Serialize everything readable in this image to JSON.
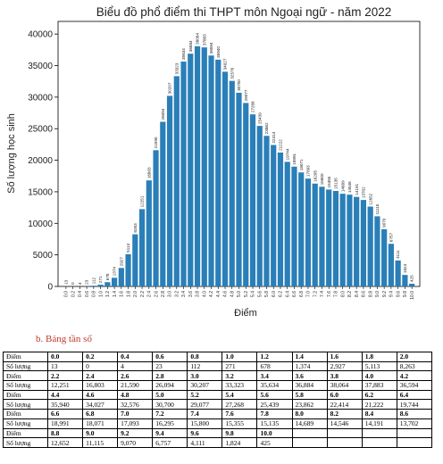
{
  "chart_data": {
    "type": "bar",
    "title": "Biểu đồ phổ điểm thi THPT môn Ngoại ngữ - năm 2022",
    "xlabel": "Điểm",
    "ylabel": "Số lượng học sinh",
    "ylim": [
      0,
      42000
    ],
    "yticks": [
      0,
      5000,
      10000,
      15000,
      20000,
      25000,
      30000,
      35000,
      40000
    ],
    "categories": [
      "0.0",
      "0.2",
      "0.4",
      "0.6",
      "0.8",
      "1.0",
      "1.2",
      "1.4",
      "1.6",
      "1.8",
      "2.0",
      "2.2",
      "2.4",
      "2.6",
      "2.8",
      "3.0",
      "3.2",
      "3.4",
      "3.6",
      "3.8",
      "4.0",
      "4.2",
      "4.4",
      "4.6",
      "4.8",
      "5.0",
      "5.2",
      "5.4",
      "5.6",
      "5.8",
      "6.0",
      "6.2",
      "6.4",
      "6.6",
      "6.8",
      "7.0",
      "7.2",
      "7.4",
      "7.6",
      "7.8",
      "8.0",
      "8.2",
      "8.4",
      "8.6",
      "8.8",
      "9.0",
      "9.2",
      "9.4",
      "9.6",
      "9.8",
      "10.0"
    ],
    "values": [
      13,
      0,
      4,
      23,
      112,
      271,
      678,
      1374,
      2927,
      5113,
      8263,
      12251,
      16803,
      21590,
      26094,
      30207,
      33323,
      35634,
      36884,
      38064,
      37883,
      36594,
      35940,
      34027,
      32576,
      30700,
      29077,
      27268,
      25439,
      23862,
      22414,
      21222,
      19744,
      18991,
      18071,
      17093,
      16295,
      15800,
      15355,
      15135,
      14689,
      14546,
      14191,
      13702,
      12652,
      11115,
      9070,
      6757,
      4111,
      1824,
      425
    ],
    "bar_color": "#2a7fb8",
    "grid": false
  },
  "table": {
    "title": "b.   Bảng tần số",
    "score_label": "Điểm",
    "count_label": "Số lượng",
    "rows": [
      {
        "scores": [
          "0.0",
          "0.2",
          "0.4",
          "0.6",
          "0.8",
          "1.0",
          "1.2",
          "1.4",
          "1.6",
          "1.8",
          "2.0"
        ],
        "counts": [
          "13",
          "0",
          "4",
          "23",
          "112",
          "271",
          "678",
          "1,374",
          "2,927",
          "5,113",
          "8,263"
        ]
      },
      {
        "scores": [
          "2.2",
          "2.4",
          "2.6",
          "2.8",
          "3.0",
          "3.2",
          "3.4",
          "3.6",
          "3.8",
          "4.0",
          "4.2"
        ],
        "counts": [
          "12,251",
          "16,803",
          "21,590",
          "26,094",
          "30,207",
          "33,323",
          "35,634",
          "36,884",
          "38,064",
          "37,883",
          "36,594"
        ]
      },
      {
        "scores": [
          "4.4",
          "4.6",
          "4.8",
          "5.0",
          "5.2",
          "5.4",
          "5.6",
          "5.8",
          "6.0",
          "6.2",
          "6.4"
        ],
        "counts": [
          "35,940",
          "34,027",
          "32,576",
          "30,700",
          "29,077",
          "27,268",
          "25,439",
          "23,862",
          "22,414",
          "21,222",
          "19,744"
        ]
      },
      {
        "scores": [
          "6.6",
          "6.8",
          "7.0",
          "7.2",
          "7.4",
          "7.6",
          "7.8",
          "8.0",
          "8.2",
          "8.4",
          "8.6"
        ],
        "counts": [
          "18,991",
          "18,071",
          "17,093",
          "16,295",
          "15,800",
          "15,355",
          "15,135",
          "14,689",
          "14,546",
          "14,191",
          "13,702"
        ]
      },
      {
        "scores": [
          "8.8",
          "9.0",
          "9.2",
          "9.4",
          "9.6",
          "9.8",
          "10.0",
          "",
          "",
          "",
          ""
        ],
        "counts": [
          "12,652",
          "11,115",
          "9,070",
          "6,757",
          "4,111",
          "1,824",
          "425",
          "",
          "",
          "",
          ""
        ]
      }
    ]
  }
}
